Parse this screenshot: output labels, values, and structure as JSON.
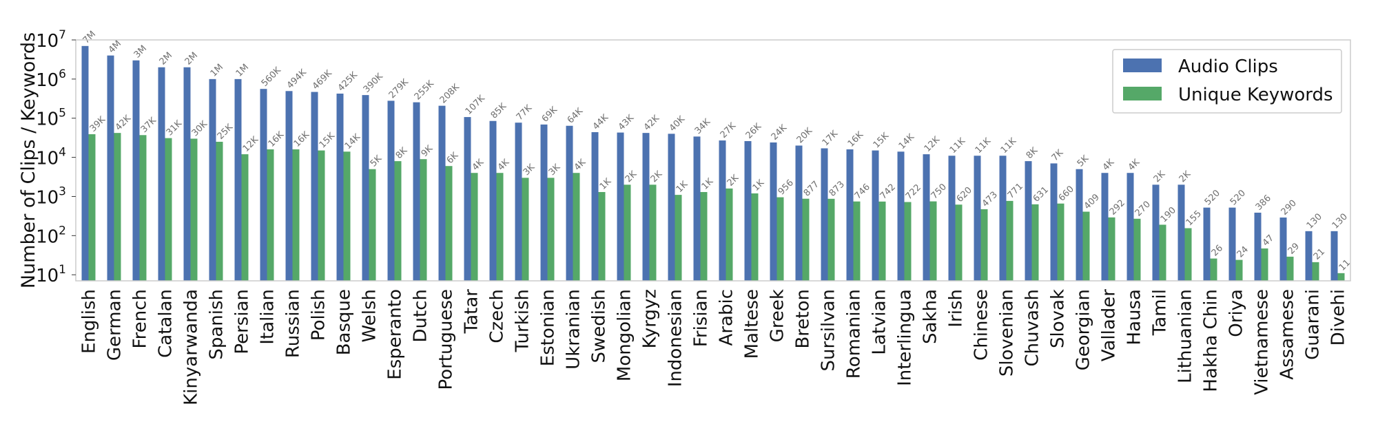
{
  "chart_data": {
    "type": "bar",
    "ylabel": "Number of Clips / Keywords",
    "xlabel": "",
    "yscale": "log",
    "ylim": [
      7,
      10000000
    ],
    "yticks": [
      {
        "value": 10,
        "base": "10",
        "exp": "1"
      },
      {
        "value": 100,
        "base": "10",
        "exp": "2"
      },
      {
        "value": 1000,
        "base": "10",
        "exp": "3"
      },
      {
        "value": 10000,
        "base": "10",
        "exp": "4"
      },
      {
        "value": 100000,
        "base": "10",
        "exp": "5"
      },
      {
        "value": 1000000,
        "base": "10",
        "exp": "6"
      },
      {
        "value": 10000000,
        "base": "10",
        "exp": "7"
      }
    ],
    "grid": false,
    "legend_position": "top-right",
    "categories": [
      "English",
      "German",
      "French",
      "Catalan",
      "Kinyarwanda",
      "Spanish",
      "Persian",
      "Italian",
      "Russian",
      "Polish",
      "Basque",
      "Welsh",
      "Esperanto",
      "Dutch",
      "Portuguese",
      "Tatar",
      "Czech",
      "Turkish",
      "Estonian",
      "Ukranian",
      "Swedish",
      "Mongolian",
      "Kyrgyz",
      "Indonesian",
      "Frisian",
      "Arabic",
      "Maltese",
      "Greek",
      "Breton",
      "Sursilvan",
      "Romanian",
      "Latvian",
      "Interlingua",
      "Sakha",
      "Irish",
      "Chinese",
      "Slovenian",
      "Chuvash",
      "Slovak",
      "Georgian",
      "Vallader",
      "Hausa",
      "Tamil",
      "Lithuanian",
      "Hakha Chin",
      "Oriya",
      "Vietnamese",
      "Assamese",
      "Guarani",
      "Divehi"
    ],
    "series": [
      {
        "name": "Audio Clips",
        "color": "#4c72b0",
        "values": [
          7000000,
          4000000,
          3000000,
          2000000,
          2000000,
          1000000,
          1000000,
          560000,
          494000,
          469000,
          425000,
          390000,
          279000,
          255000,
          208000,
          107000,
          85000,
          77000,
          69000,
          64000,
          44000,
          43000,
          42000,
          40000,
          34000,
          27000,
          26000,
          24000,
          20000,
          17000,
          16000,
          15000,
          14000,
          12000,
          11000,
          11000,
          11000,
          8000,
          7000,
          5000,
          4000,
          4000,
          2000,
          2000,
          520,
          520,
          386,
          290,
          130,
          130
        ],
        "labels": [
          "7M",
          "4M",
          "3M",
          "2M",
          "2M",
          "1M",
          "1M",
          "560K",
          "494K",
          "469K",
          "425K",
          "390K",
          "279K",
          "255K",
          "208K",
          "107K",
          "85K",
          "77K",
          "69K",
          "64K",
          "44K",
          "43K",
          "42K",
          "40K",
          "34K",
          "27K",
          "26K",
          "24K",
          "20K",
          "17K",
          "16K",
          "15K",
          "14K",
          "12K",
          "11K",
          "11K",
          "11K",
          "8K",
          "7K",
          "5K",
          "4K",
          "4K",
          "2K",
          "2K",
          "520",
          "520",
          "386",
          "290",
          "130",
          "130"
        ]
      },
      {
        "name": "Unique Keywords",
        "color": "#55a868",
        "values": [
          39000,
          42000,
          37000,
          31000,
          30000,
          25000,
          12000,
          16000,
          16000,
          15000,
          14000,
          5000,
          8000,
          9000,
          6000,
          4000,
          4000,
          3000,
          3000,
          4000,
          1300,
          2000,
          2000,
          1100,
          1300,
          1600,
          1200,
          956,
          877,
          873,
          746,
          742,
          722,
          750,
          620,
          473,
          771,
          631,
          660,
          409,
          292,
          270,
          190,
          155,
          26,
          24,
          47,
          29,
          21,
          11
        ],
        "labels": [
          "39K",
          "42K",
          "37K",
          "31K",
          "30K",
          "25K",
          "12K",
          "16K",
          "16K",
          "15K",
          "14K",
          "5K",
          "8K",
          "9K",
          "6K",
          "4K",
          "4K",
          "3K",
          "3K",
          "4K",
          "1K",
          "2K",
          "2K",
          "1K",
          "1K",
          "2K",
          "1K",
          "956",
          "877",
          "873",
          "746",
          "742",
          "722",
          "750",
          "620",
          "473",
          "771",
          "631",
          "660",
          "409",
          "292",
          "270",
          "190",
          "155",
          "26",
          "24",
          "47",
          "29",
          "21",
          "11"
        ]
      }
    ]
  }
}
